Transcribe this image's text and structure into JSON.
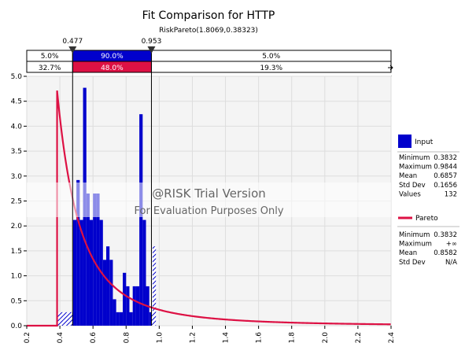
{
  "chart_data": {
    "type": "bar",
    "title": "Fit Comparison for HTTP",
    "subtitle": "RiskPareto(1.8069,0.38323)",
    "xlim": [
      0.2,
      2.4
    ],
    "ylim": [
      0,
      5.0
    ],
    "x_ticks": [
      "0.2",
      "0.4",
      "0.6",
      "0.8",
      "1.0",
      "1.2",
      "1.4",
      "1.6",
      "1.8",
      "2.0",
      "2.2",
      "2.4"
    ],
    "y_ticks": [
      "0.0",
      "0.5",
      "1.0",
      "1.5",
      "2.0",
      "2.5",
      "3.0",
      "3.5",
      "4.0",
      "4.5",
      "5.0"
    ],
    "grid": true,
    "histogram": {
      "name": "Input",
      "color": "#0000cc",
      "bin_width": 0.02,
      "bins": [
        {
          "x0": 0.38,
          "value": 0.27
        },
        {
          "x0": 0.4,
          "value": 0.27
        },
        {
          "x0": 0.42,
          "value": 0.27
        },
        {
          "x0": 0.44,
          "value": 0.27
        },
        {
          "x0": 0.46,
          "value": 0.27
        },
        {
          "x0": 0.48,
          "value": 2.12
        },
        {
          "x0": 0.5,
          "value": 2.92
        },
        {
          "x0": 0.52,
          "value": 2.12
        },
        {
          "x0": 0.54,
          "value": 4.77
        },
        {
          "x0": 0.56,
          "value": 2.65
        },
        {
          "x0": 0.58,
          "value": 2.12
        },
        {
          "x0": 0.6,
          "value": 2.65
        },
        {
          "x0": 0.62,
          "value": 2.65
        },
        {
          "x0": 0.64,
          "value": 2.12
        },
        {
          "x0": 0.66,
          "value": 1.32
        },
        {
          "x0": 0.68,
          "value": 1.59
        },
        {
          "x0": 0.7,
          "value": 1.32
        },
        {
          "x0": 0.72,
          "value": 0.53
        },
        {
          "x0": 0.74,
          "value": 0.27
        },
        {
          "x0": 0.76,
          "value": 0.27
        },
        {
          "x0": 0.78,
          "value": 1.06
        },
        {
          "x0": 0.8,
          "value": 0.79
        },
        {
          "x0": 0.82,
          "value": 0.27
        },
        {
          "x0": 0.84,
          "value": 0.79
        },
        {
          "x0": 0.86,
          "value": 0.79
        },
        {
          "x0": 0.88,
          "value": 4.24
        },
        {
          "x0": 0.9,
          "value": 2.12
        },
        {
          "x0": 0.92,
          "value": 0.79
        },
        {
          "x0": 0.94,
          "value": 0.27
        },
        {
          "x0": 0.96,
          "value": 1.59
        }
      ]
    },
    "curve": {
      "name": "Pareto",
      "color": "#dd1144",
      "alpha": 1.8069,
      "theta": 0.38323
    },
    "markers": {
      "left": {
        "value": 0.477,
        "label": "0.477"
      },
      "right": {
        "value": 0.953,
        "label": "0.953"
      }
    },
    "delimiter_bars": {
      "input": {
        "left": "5.0%",
        "middle": "90.0%",
        "right": "5.0%",
        "color": "#0000cc"
      },
      "fit": {
        "left": "32.7%",
        "middle": "48.0%",
        "right": "19.3%",
        "color": "#dd1144"
      }
    },
    "watermark": {
      "line1": "@RISK Trial Version",
      "line2": "For Evaluation Purposes Only"
    },
    "legend": {
      "placement": "right",
      "input": {
        "label": "Input",
        "stats": [
          {
            "name": "Minimum",
            "value": "0.3832"
          },
          {
            "name": "Maximum",
            "value": "0.9844"
          },
          {
            "name": "Mean",
            "value": "0.6857"
          },
          {
            "name": "Std Dev",
            "value": "0.1656"
          },
          {
            "name": "Values",
            "value": "132"
          }
        ]
      },
      "fit": {
        "label": "Pareto",
        "stats": [
          {
            "name": "Minimum",
            "value": "0.3832"
          },
          {
            "name": "Maximum",
            "value": "+∞"
          },
          {
            "name": "Mean",
            "value": "0.8582"
          },
          {
            "name": "Std Dev",
            "value": "N/A"
          }
        ]
      }
    }
  }
}
